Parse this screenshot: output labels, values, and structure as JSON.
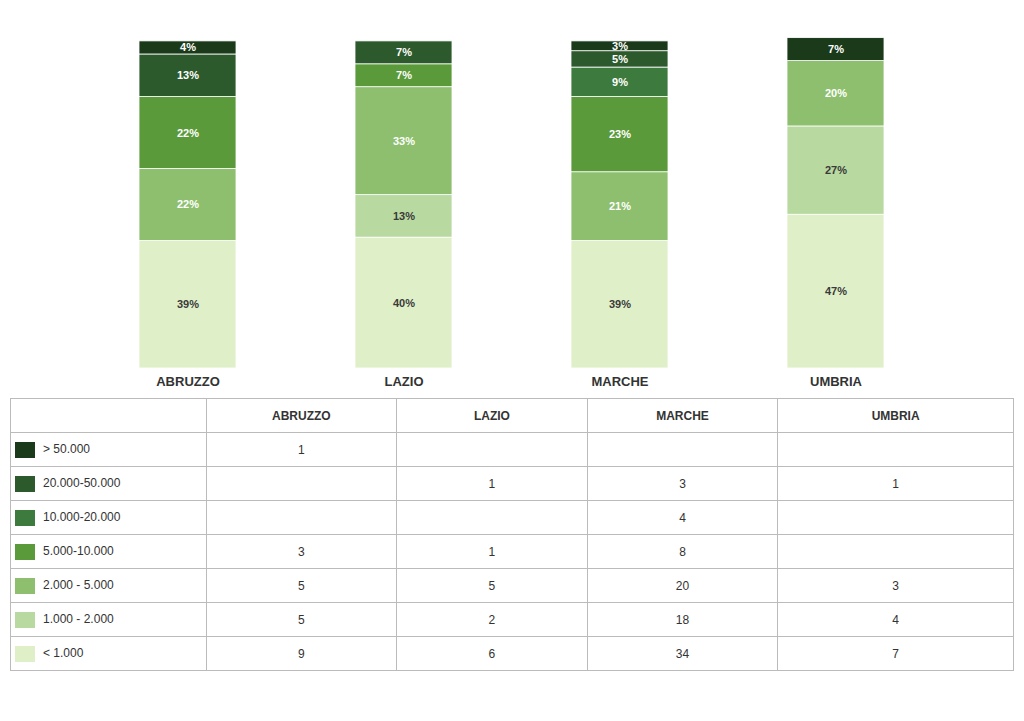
{
  "chart_data": {
    "type": "bar",
    "stacked": true,
    "data_labels": true,
    "tick_labels": "x",
    "grid": false,
    "categories": [
      "ABRUZZO",
      "LAZIO",
      "MARCHE",
      "UMBRIA"
    ],
    "ylim": [
      0,
      107
    ],
    "series": [
      {
        "name": "> 50.000",
        "color": "#1a3a1a",
        "values": [
          4,
          0,
          3,
          7
        ],
        "value_labels": [
          "4%",
          null,
          "3%",
          "7%"
        ],
        "counts": [
          1,
          null,
          null,
          null
        ]
      },
      {
        "name": "20.000-50.000",
        "color": "#2d5a2d",
        "values": [
          13,
          7,
          5,
          0
        ],
        "value_labels": [
          "13%",
          "7%",
          "5%",
          null
        ],
        "counts": [
          null,
          1,
          3,
          1
        ]
      },
      {
        "name": "10.000-20.000",
        "color": "#3d7a3d",
        "values": [
          0,
          0,
          9,
          0
        ],
        "value_labels": [
          null,
          null,
          "9%",
          null
        ],
        "counts": [
          null,
          null,
          4,
          null
        ]
      },
      {
        "name": "5.000-10.000",
        "color": "#5a9a3a",
        "values": [
          22,
          7,
          23,
          0
        ],
        "value_labels": [
          "22%",
          "7%",
          "23%",
          null
        ],
        "counts": [
          3,
          1,
          8,
          null
        ]
      },
      {
        "name": "2.000 - 5.000",
        "color": "#8dbf6e",
        "values": [
          22,
          33,
          21,
          20
        ],
        "value_labels": [
          "22%",
          "33%",
          "21%",
          "20%"
        ],
        "counts": [
          5,
          5,
          20,
          3
        ]
      },
      {
        "name": "1.000 - 2.000",
        "color": "#b8d9a0",
        "values": [
          0,
          13,
          0,
          27
        ],
        "value_labels": [
          null,
          "13%",
          null,
          "27%"
        ],
        "counts": [
          5,
          2,
          18,
          4
        ]
      },
      {
        "name": "< 1.000",
        "color": "#dff0c8",
        "values": [
          39,
          40,
          39,
          47
        ],
        "value_labels": [
          "39%",
          "40%",
          "39%",
          "47%"
        ],
        "counts": [
          9,
          6,
          34,
          7
        ]
      }
    ]
  }
}
